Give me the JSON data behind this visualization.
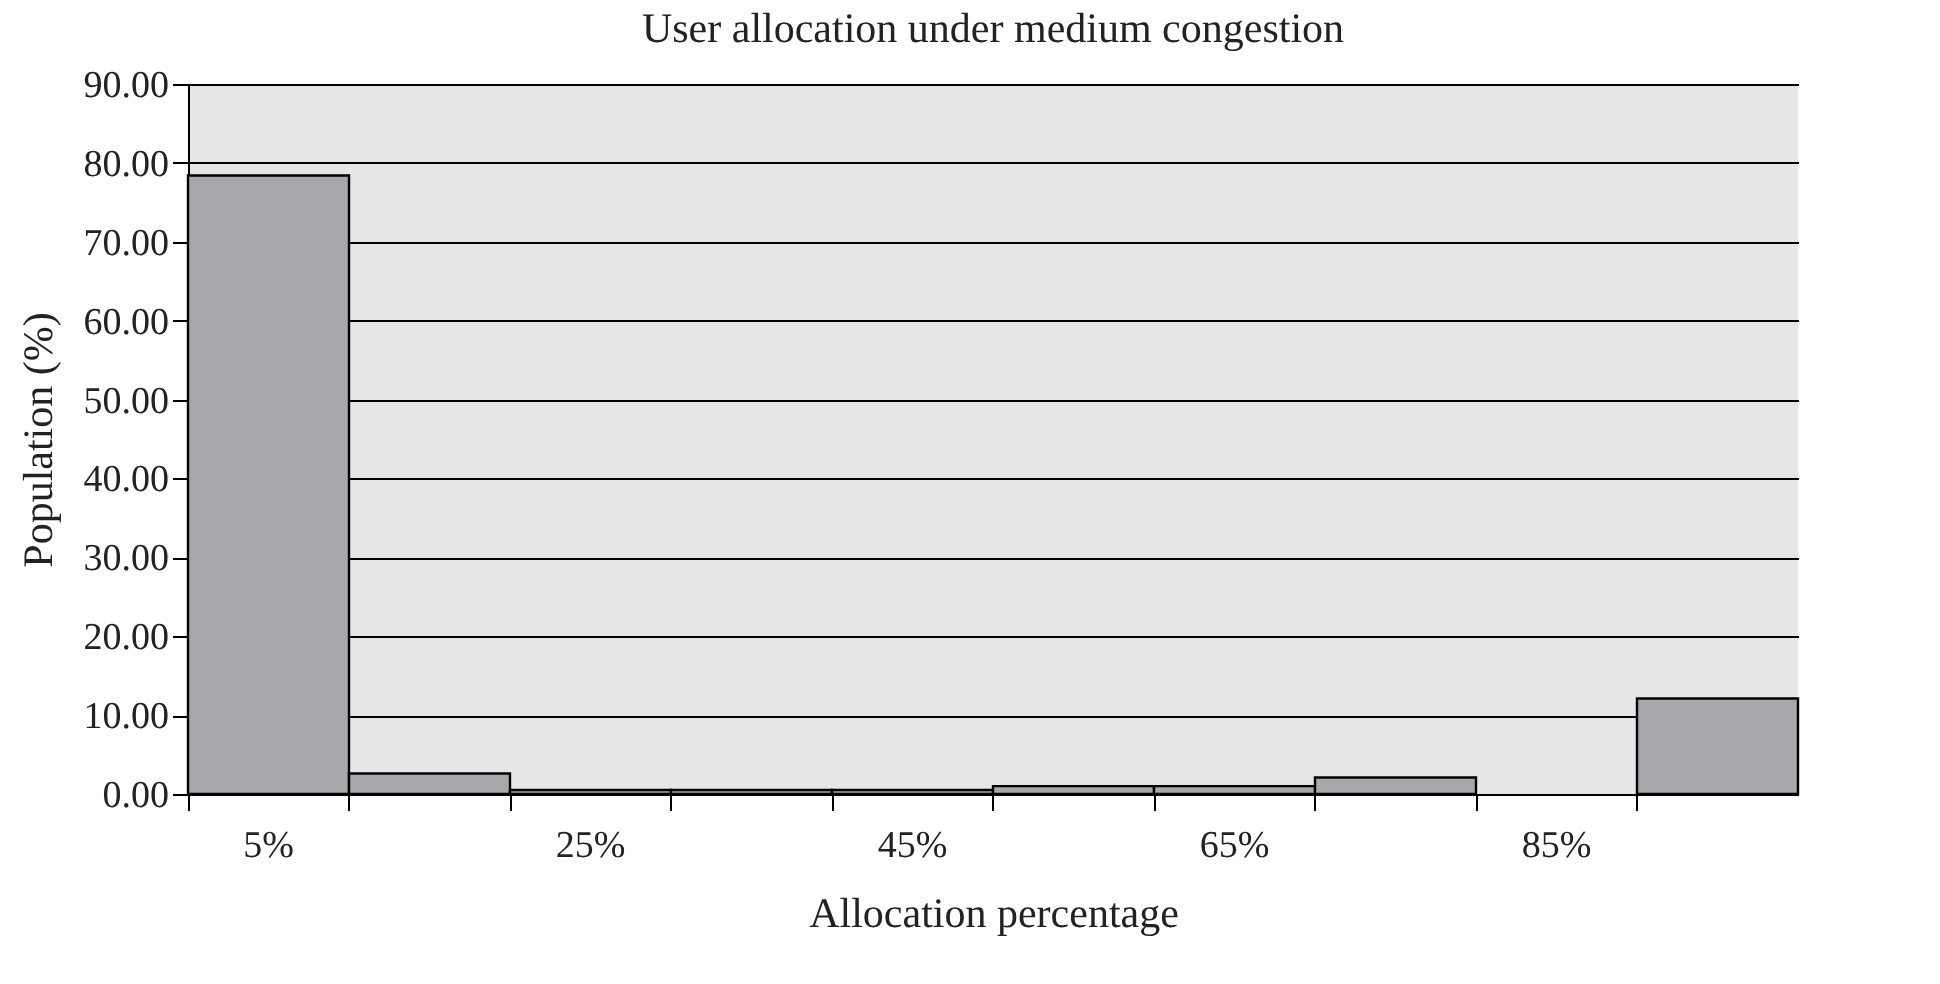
{
  "chart_data": {
    "type": "bar",
    "title": "User allocation under medium congestion",
    "xlabel": "Allocation percentage",
    "ylabel": "Population (%)",
    "categories": [
      "5%",
      null,
      "25%",
      null,
      "45%",
      null,
      "65%",
      null,
      "85%",
      null
    ],
    "values": [
      78.4,
      2.6,
      0.5,
      0.5,
      0.5,
      1.0,
      1.0,
      2.1,
      null,
      12.1
    ],
    "color": "#a7a8ab",
    "ylim": [
      0,
      90
    ],
    "yticks": [
      {
        "value": 0,
        "label": "0.00"
      },
      {
        "value": 10,
        "label": "10.00"
      },
      {
        "value": 20,
        "label": "20.00"
      },
      {
        "value": 30,
        "label": "30.00"
      },
      {
        "value": 40,
        "label": "40.00"
      },
      {
        "value": 50,
        "label": "50.00"
      },
      {
        "value": 60,
        "label": "60.00"
      },
      {
        "value": 70,
        "label": "70.00"
      },
      {
        "value": 80,
        "label": "80.00"
      },
      {
        "value": 90,
        "label": "90.00"
      }
    ],
    "grid": "y"
  }
}
